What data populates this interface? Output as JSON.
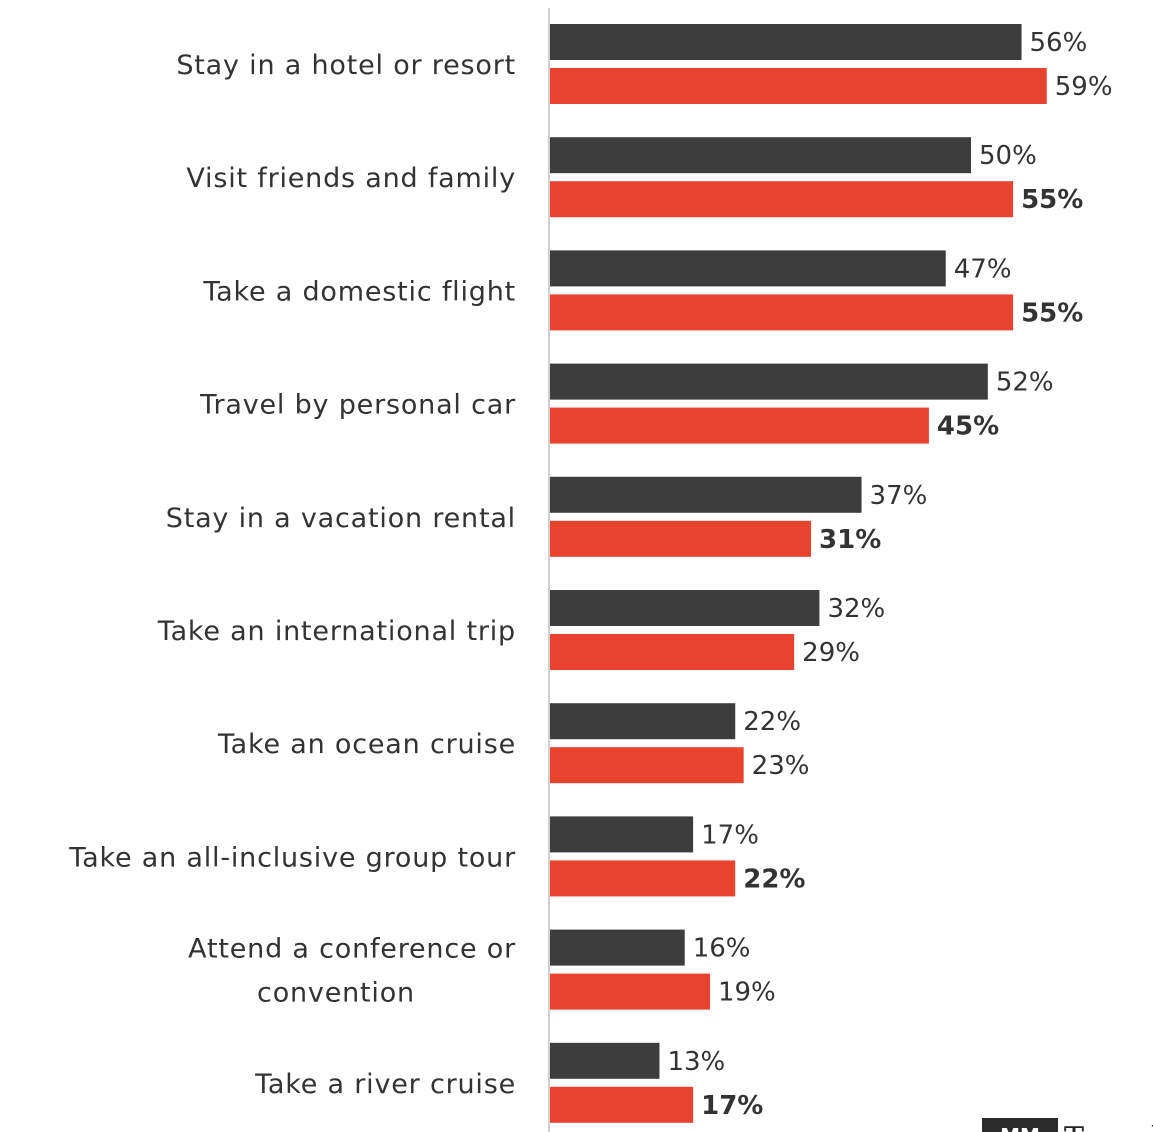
{
  "chart_data": {
    "type": "bar",
    "orientation": "horizontal",
    "categories": [
      [
        "Stay in a hotel or resort"
      ],
      [
        "Visit friends and family"
      ],
      [
        "Take a domestic flight"
      ],
      [
        "Travel by personal car"
      ],
      [
        "Stay in a vacation rental"
      ],
      [
        "Take an international trip"
      ],
      [
        "Take an ocean cruise"
      ],
      [
        "Take an all-inclusive group tour"
      ],
      [
        "Attend a conference or",
        "convention"
      ],
      [
        "Take a river cruise"
      ]
    ],
    "series": [
      {
        "color": "#3d3d3d",
        "values": [
          56,
          50,
          47,
          52,
          37,
          32,
          22,
          17,
          16,
          13
        ],
        "labels": [
          "56%",
          "50%",
          "47%",
          "52%",
          "37%",
          "32%",
          "22%",
          "17%",
          "16%",
          "13%"
        ],
        "bold": [
          false,
          false,
          false,
          false,
          false,
          false,
          false,
          false,
          false,
          false
        ]
      },
      {
        "color": "#e8432f",
        "values": [
          59,
          55,
          55,
          45,
          31,
          29,
          23,
          22,
          19,
          17
        ],
        "labels": [
          "59%",
          "55%",
          "55%",
          "45%",
          "31%",
          "29%",
          "23%",
          "22%",
          "19%",
          "17%"
        ],
        "bold": [
          false,
          true,
          true,
          true,
          true,
          false,
          false,
          true,
          false,
          true
        ]
      }
    ],
    "xlim": [
      0,
      70
    ],
    "grid": false,
    "legend": "none"
  },
  "logo": {
    "mark": "MM",
    "text": "Travel"
  }
}
